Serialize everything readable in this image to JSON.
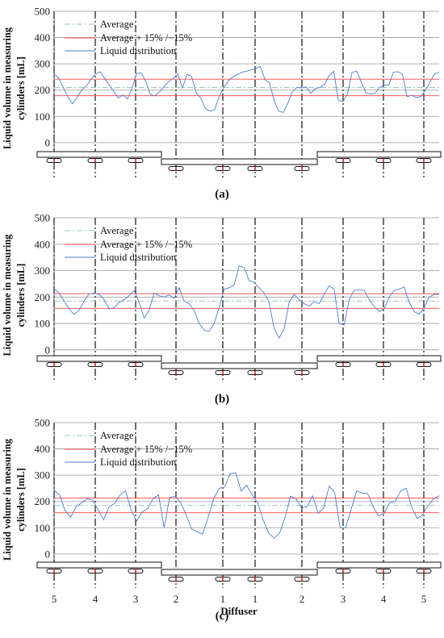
{
  "figure": {
    "ylabel_line1": "Liquid volume in measuring",
    "ylabel_line2": "cylinders [mL]",
    "xlabel": "Diffuser",
    "diffuser_labels": [
      "5",
      "4",
      "3",
      "2",
      "1",
      "1",
      "2",
      "3",
      "4",
      "5"
    ],
    "colors": {
      "average": "#9fc6c2",
      "band": "#ff4040",
      "distribution": "#4a7fd4",
      "grid": "#9a9a9a",
      "divider": "#111111"
    }
  },
  "chart_data": [
    {
      "type": "line",
      "caption": "(a)",
      "ylim": [
        -25,
        500
      ],
      "yticks": [
        0,
        100,
        200,
        300,
        400,
        500
      ],
      "legend": [
        "Average",
        "Average + 15% /−15%",
        "Liquid distribution"
      ],
      "average": 210,
      "band_upper": 241.5,
      "band_lower": 178.5,
      "distribution": [
        262,
        245,
        210,
        175,
        148,
        172,
        200,
        215,
        240,
        260,
        270,
        245,
        220,
        195,
        170,
        182,
        166,
        208,
        263,
        266,
        233,
        183,
        178,
        193,
        215,
        232,
        245,
        262,
        208,
        260,
        252,
        190,
        170,
        130,
        120,
        125,
        175,
        210,
        235,
        250,
        260,
        268,
        272,
        278,
        282,
        290,
        240,
        228,
        160,
        120,
        115,
        150,
        195,
        210,
        208,
        212,
        188,
        206,
        210,
        222,
        255,
        272,
        162,
        156,
        185,
        268,
        272,
        232,
        190,
        185,
        188,
        210,
        220,
        218,
        268,
        270,
        260,
        175,
        180,
        172,
        175,
        200,
        230,
        262,
        268
      ]
    },
    {
      "type": "line",
      "caption": "(b)",
      "ylim": [
        -25,
        500
      ],
      "yticks": [
        0,
        100,
        200,
        300,
        400,
        500
      ],
      "legend": [
        "Average",
        "Average + 15% /−15%",
        "Liquid distribution"
      ],
      "average": 185,
      "band_upper": 212.75,
      "band_lower": 157.25,
      "distribution": [
        232,
        215,
        185,
        155,
        135,
        150,
        185,
        212,
        215,
        210,
        190,
        155,
        160,
        180,
        190,
        205,
        225,
        180,
        120,
        150,
        215,
        205,
        200,
        208,
        195,
        235,
        185,
        175,
        150,
        100,
        75,
        70,
        100,
        160,
        230,
        235,
        245,
        318,
        312,
        262,
        256,
        235,
        215,
        180,
        80,
        45,
        80,
        180,
        210,
        190,
        175,
        165,
        183,
        175,
        210,
        242,
        230,
        100,
        95,
        190,
        225,
        228,
        225,
        190,
        165,
        145,
        155,
        200,
        225,
        230,
        238,
        180,
        145,
        135,
        160,
        200,
        210,
        210
      ]
    },
    {
      "type": "line",
      "caption": "(c)",
      "ylim": [
        -25,
        500
      ],
      "yticks": [
        0,
        100,
        200,
        300,
        400,
        500
      ],
      "legend": [
        "Average",
        "Average + 15% /−15%",
        "Liquid distribution"
      ],
      "average": 185,
      "band_upper": 212.75,
      "band_lower": 157.25,
      "distribution": [
        242,
        225,
        165,
        140,
        180,
        195,
        210,
        205,
        170,
        130,
        180,
        192,
        225,
        240,
        168,
        125,
        160,
        172,
        210,
        225,
        100,
        215,
        220,
        195,
        150,
        95,
        85,
        75,
        140,
        210,
        250,
        255,
        305,
        310,
        240,
        262,
        225,
        195,
        130,
        80,
        60,
        80,
        140,
        220,
        210,
        175,
        180,
        222,
        155,
        175,
        258,
        235,
        100,
        100,
        170,
        240,
        232,
        230,
        180,
        145,
        155,
        195,
        200,
        240,
        250,
        180,
        135,
        150,
        185,
        210,
        222
      ]
    }
  ]
}
